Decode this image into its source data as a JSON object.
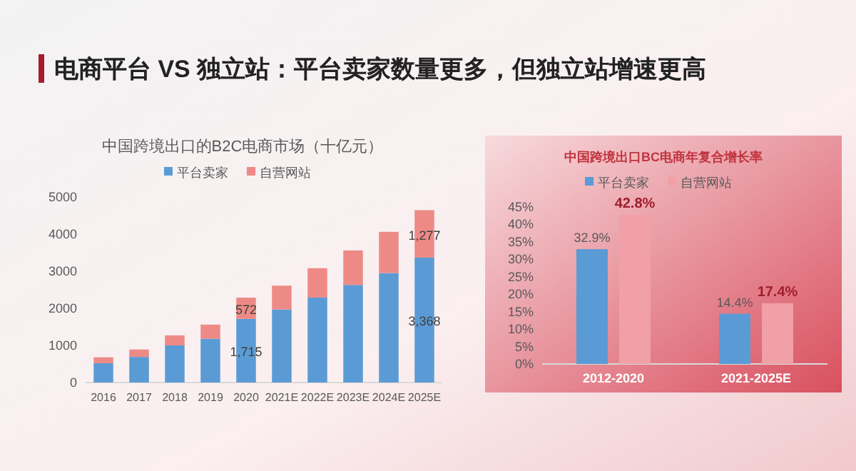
{
  "chart_data": [
    {
      "type": "other",
      "title": "电商平台 VS 独立站：平台卖家数量更多，但独立站增速更高"
    },
    {
      "type": "bar",
      "title": "中国跨境出口的B2C电商市场（十亿元）",
      "stacked": true,
      "legend": "top",
      "categories": [
        "2016",
        "2017",
        "2018",
        "2019",
        "2020",
        "2021E",
        "2022E",
        "2023E",
        "2024E",
        "2025E"
      ],
      "series": [
        {
          "name": "平台卖家",
          "color": "#5b9bd5",
          "values": [
            520,
            690,
            1000,
            1180,
            1715,
            1970,
            2290,
            2630,
            2950,
            3368
          ],
          "value_labels": [
            null,
            null,
            null,
            null,
            "1,715",
            null,
            null,
            null,
            null,
            "3,368"
          ]
        },
        {
          "name": "自营网站",
          "color": "#ee8a86",
          "values": [
            160,
            200,
            270,
            380,
            572,
            640,
            790,
            930,
            1110,
            1277
          ],
          "value_labels": [
            null,
            null,
            null,
            null,
            "572",
            null,
            null,
            null,
            null,
            "1,277"
          ]
        }
      ],
      "ylim": [
        0,
        5000
      ],
      "yticks": [
        0,
        1000,
        2000,
        3000,
        4000,
        5000
      ]
    },
    {
      "type": "bar",
      "title": "中国跨境出口BC电商年复合增长率",
      "legend": "top",
      "categories": [
        "2012-2020",
        "2021-2025E"
      ],
      "series": [
        {
          "name": "平台卖家",
          "color": "#5b9bd5",
          "values": [
            32.9,
            14.4
          ],
          "value_labels": [
            "32.9%",
            "14.4%"
          ]
        },
        {
          "name": "自营网站",
          "color": "#f0a0a6",
          "values": [
            42.8,
            17.4
          ],
          "value_labels": [
            "42.8%",
            "17.4%"
          ]
        }
      ],
      "ylim": [
        0,
        45
      ],
      "yticks": [
        {
          "value": 0,
          "label": "0%"
        },
        {
          "value": 5,
          "label": "5%"
        },
        {
          "value": 10,
          "label": "10%"
        },
        {
          "value": 15,
          "label": "15%"
        },
        {
          "value": 20,
          "label": "20%"
        },
        {
          "value": 25,
          "label": "25%"
        },
        {
          "value": 30,
          "label": "30%"
        },
        {
          "value": 35,
          "label": "35%"
        },
        {
          "value": 40,
          "label": "40%"
        },
        {
          "value": 45,
          "label": "45%"
        }
      ]
    }
  ]
}
